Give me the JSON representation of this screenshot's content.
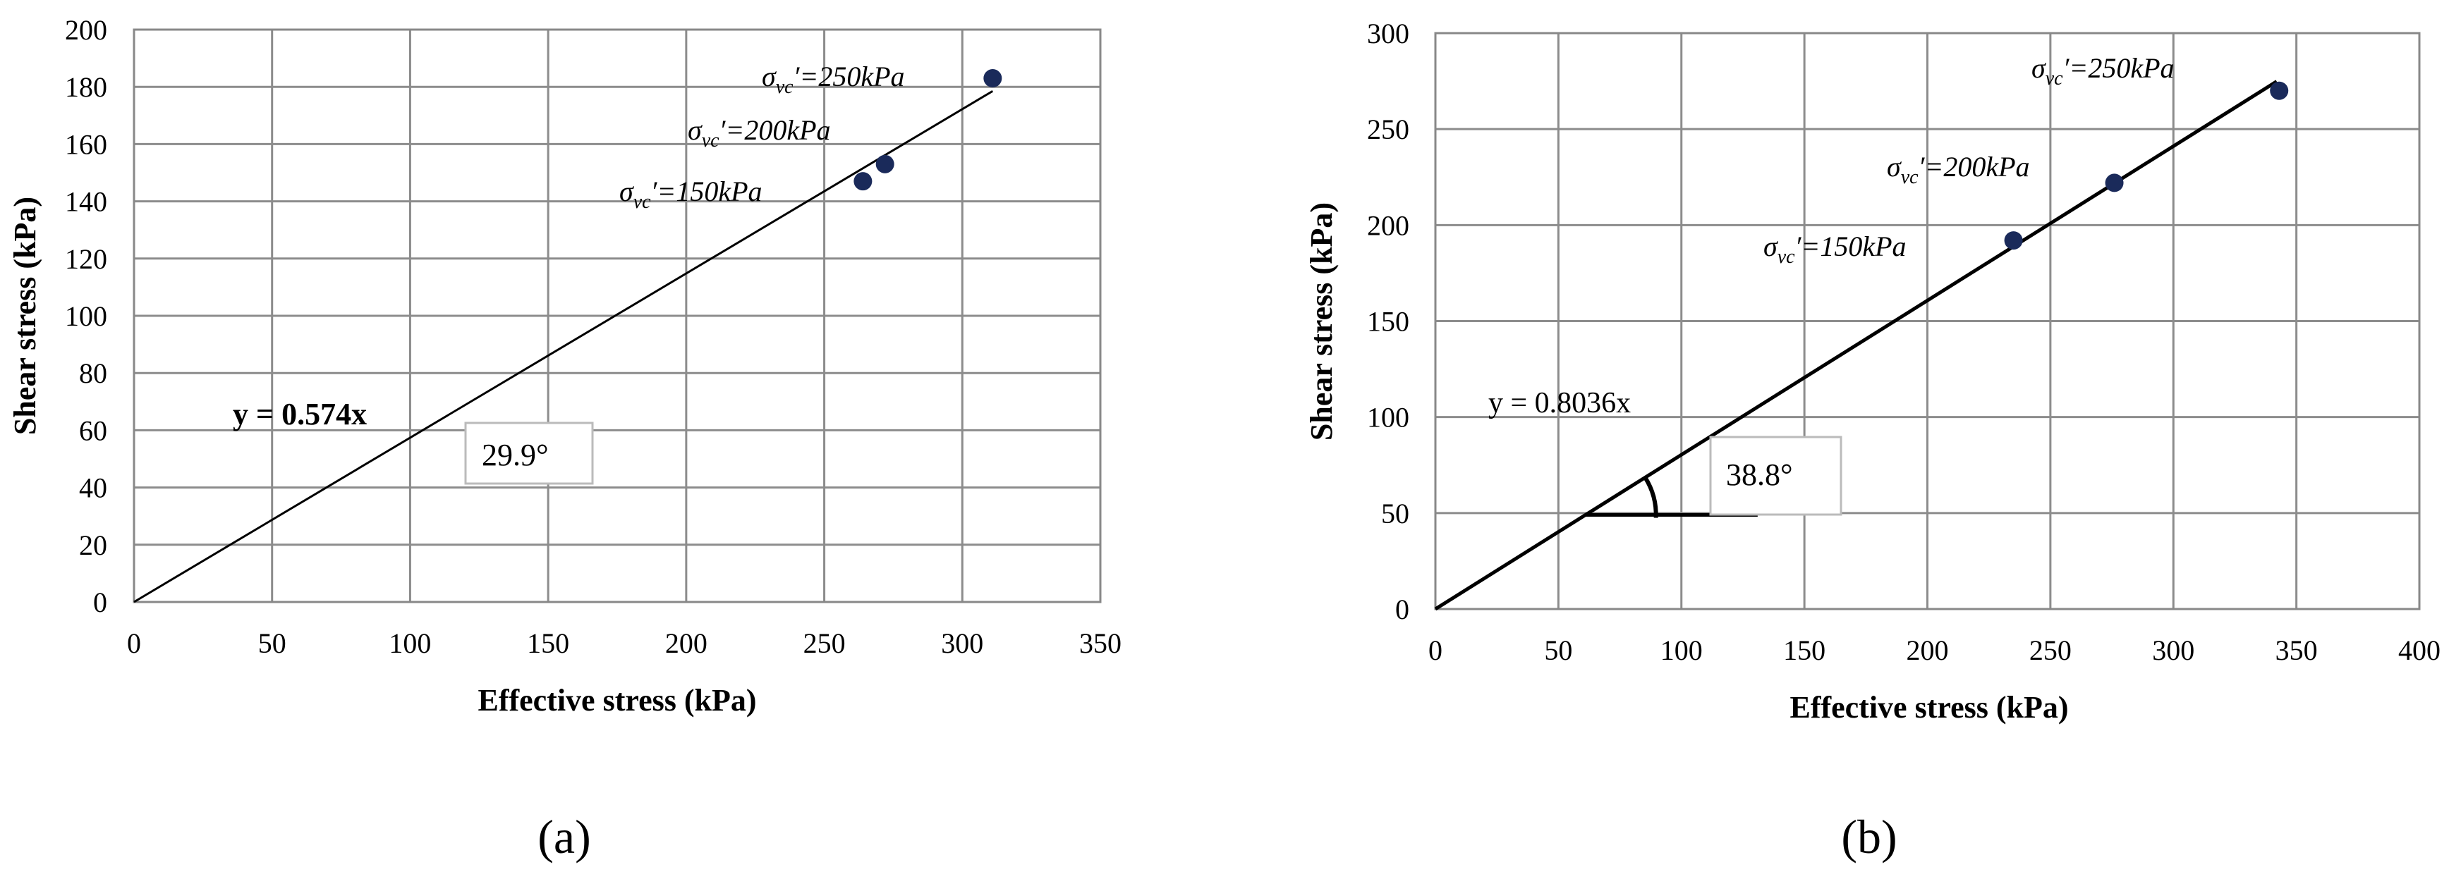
{
  "chart_data": [
    {
      "type": "scatter",
      "panel_label": "(a)",
      "xlabel": "Effective stress (kPa)",
      "ylabel": "Shear stress (kPa)",
      "xlim": [
        0,
        350
      ],
      "ylim": [
        0,
        200
      ],
      "xticks": [
        0,
        50,
        100,
        150,
        200,
        250,
        300,
        350
      ],
      "yticks": [
        0,
        20,
        40,
        60,
        80,
        100,
        120,
        140,
        160,
        180,
        200
      ],
      "grid": true,
      "marker_color": "#1a2a5a",
      "line_color": "#000000",
      "points": [
        {
          "x": 264,
          "y": 147
        },
        {
          "x": 272,
          "y": 153
        },
        {
          "x": 311,
          "y": 183
        }
      ],
      "trendline": {
        "slope": 0.574,
        "x_start": 0,
        "x_end": 311,
        "label": "y = 0.574x"
      },
      "angle_label": "29.9°",
      "point_labels": [
        {
          "sym": "σ",
          "sub": "vc",
          "rest": "′=150kPa"
        },
        {
          "sym": "σ",
          "sub": "vc",
          "rest": "′=200kPa"
        },
        {
          "sym": "σ",
          "sub": "vc",
          "rest": "′=250kPa"
        }
      ]
    },
    {
      "type": "scatter",
      "panel_label": "(b)",
      "xlabel": "Effective stress (kPa)",
      "ylabel": "Shear stress (kPa)",
      "xlim": [
        0,
        400
      ],
      "ylim": [
        0,
        300
      ],
      "xticks": [
        0,
        50,
        100,
        150,
        200,
        250,
        300,
        350,
        400
      ],
      "yticks": [
        0,
        50,
        100,
        150,
        200,
        250,
        300
      ],
      "grid": true,
      "marker_color": "#1a2a5a",
      "line_color": "#000000",
      "points": [
        {
          "x": 235,
          "y": 192
        },
        {
          "x": 276,
          "y": 222
        },
        {
          "x": 343,
          "y": 270
        }
      ],
      "trendline": {
        "slope": 0.8036,
        "x_start": 0,
        "x_end": 342,
        "label": "y = 0.8036x"
      },
      "angle_label": "38.8°",
      "angle_baseline": {
        "x_start": 61,
        "x_end": 131,
        "y": 49
      },
      "point_labels": [
        {
          "sym": "σ",
          "sub": "vc",
          "rest": "′=150kPa"
        },
        {
          "sym": "σ",
          "sub": "vc",
          "rest": "′=200kPa"
        },
        {
          "sym": "σ",
          "sub": "vc",
          "rest": "′=250kPa"
        }
      ]
    }
  ]
}
